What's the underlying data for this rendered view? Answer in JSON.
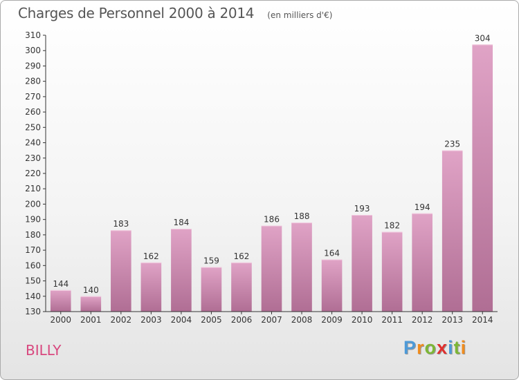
{
  "chart_data": {
    "type": "bar",
    "title": "Charges de Personnel 2000 à 2014",
    "subtitle": "(en milliers d'€)",
    "xlabel": "",
    "ylabel": "",
    "categories": [
      "2000",
      "2001",
      "2002",
      "2003",
      "2004",
      "2005",
      "2006",
      "2007",
      "2008",
      "2009",
      "2010",
      "2011",
      "2012",
      "2013",
      "2014"
    ],
    "values": [
      144,
      140,
      183,
      162,
      184,
      159,
      162,
      186,
      188,
      164,
      193,
      182,
      194,
      235,
      304
    ],
    "ylim": [
      130,
      310
    ],
    "yticks": [
      130,
      140,
      150,
      160,
      170,
      180,
      190,
      200,
      210,
      220,
      230,
      240,
      250,
      260,
      270,
      280,
      290,
      300,
      310
    ],
    "grid": false,
    "bar_color_top": "#e0a3c6",
    "bar_color_bottom": "#b06e94"
  },
  "footer": {
    "town": "BILLY",
    "logo_letters": [
      {
        "ch": "P",
        "color": "#4d9ad8"
      },
      {
        "ch": "r",
        "color": "#f08c1e"
      },
      {
        "ch": "o",
        "color": "#7db636"
      },
      {
        "ch": "x",
        "color": "#e0302f"
      },
      {
        "ch": "i",
        "color": "#4d9ad8"
      },
      {
        "ch": "t",
        "color": "#7db636"
      },
      {
        "ch": "i",
        "color": "#f08c1e"
      }
    ]
  }
}
